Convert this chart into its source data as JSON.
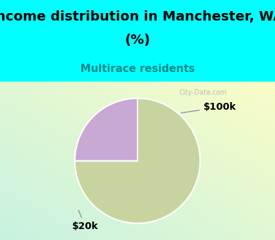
{
  "title_line1": "Income distribution in Manchester, WA",
  "title_line2": "(%)",
  "subtitle": "Multirace residents",
  "slices": [
    75,
    25
  ],
  "labels": [
    "$20k",
    "$100k"
  ],
  "colors": [
    "#c8d4a0",
    "#c9a8d4"
  ],
  "bg_cyan": "#00ffff",
  "chart_bg_top_left": "#c8f0e8",
  "chart_bg_bottom_right": "#f0f8f0",
  "title_fontsize": 14,
  "subtitle_fontsize": 11,
  "subtitle_color": "#008888",
  "label_fontsize": 10,
  "start_angle": 90,
  "watermark": "City-Data.com",
  "wedge_edgecolor": "#ffffff"
}
